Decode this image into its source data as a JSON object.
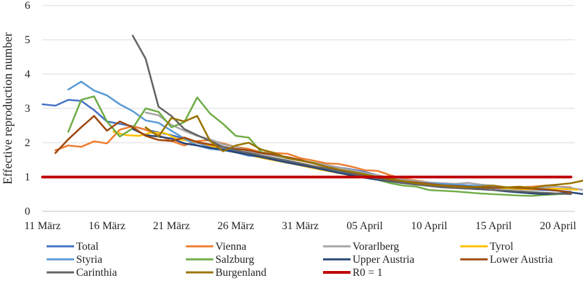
{
  "chart_data": {
    "type": "line",
    "ylabel": "Effective reproduction number",
    "xlabel": "",
    "ylim": [
      0,
      6
    ],
    "yticks": [
      0,
      1,
      2,
      3,
      4,
      5,
      6
    ],
    "x_tick_labels": [
      {
        "label": "11 März",
        "day": 0
      },
      {
        "label": "16 März",
        "day": 5
      },
      {
        "label": "21 März",
        "day": 10
      },
      {
        "label": "26 März",
        "day": 15
      },
      {
        "label": "31 März",
        "day": 20
      },
      {
        "label": "05 April",
        "day": 25
      },
      {
        "label": "10 April",
        "day": 30
      },
      {
        "label": "15 April",
        "day": 35
      },
      {
        "label": "20 April",
        "day": 40
      }
    ],
    "xlim_days": [
      0,
      41.3
    ],
    "grid": "horizontal",
    "legend_position": "bottom",
    "series": [
      {
        "name": "Total",
        "color": "#4472c4",
        "start_day": 0,
        "values": [
          3.12,
          3.08,
          3.25,
          3.22,
          2.95,
          2.62,
          2.55,
          2.48,
          2.38,
          2.3,
          2.22,
          2.12,
          2.0,
          1.9,
          1.82,
          1.75,
          1.72,
          1.68,
          1.62,
          1.55,
          1.48,
          1.4,
          1.33,
          1.28,
          1.22,
          1.15,
          1.05,
          0.97,
          0.92,
          0.88,
          0.84,
          0.8,
          0.77,
          0.74,
          0.71,
          0.68,
          0.66,
          0.64,
          0.63,
          0.62,
          0.6,
          0.57
        ]
      },
      {
        "name": "Vienna",
        "color": "#ed7d31",
        "start_day": 1,
        "values": [
          1.78,
          1.92,
          1.88,
          2.04,
          1.98,
          2.38,
          2.48,
          2.38,
          2.22,
          2.05,
          1.92,
          2.05,
          2.07,
          1.98,
          1.88,
          1.82,
          1.72,
          1.7,
          1.68,
          1.55,
          1.48,
          1.4,
          1.38,
          1.3,
          1.2,
          1.18,
          1.05,
          0.95,
          0.9,
          0.84,
          0.8,
          0.76,
          0.74,
          0.72,
          0.7,
          0.68,
          0.7,
          0.72,
          0.75,
          0.72,
          0.7
        ]
      },
      {
        "name": "Vorarlberg",
        "color": "#a5a5a5",
        "start_day": 8,
        "values": [
          2.88,
          2.8,
          2.52,
          2.35,
          2.2,
          2.1,
          1.95,
          1.88,
          1.75,
          1.68,
          1.62,
          1.55,
          1.48,
          1.42,
          1.35,
          1.28,
          1.2,
          1.12,
          1.05,
          0.98,
          0.92,
          0.88,
          0.84,
          0.82,
          0.8,
          0.83,
          0.78,
          0.75,
          0.7,
          0.68,
          0.66,
          0.7,
          0.72,
          0.68,
          0.62
        ]
      },
      {
        "name": "Tyrol",
        "color": "#ffc000",
        "start_day": 5.5,
        "values": [
          2.32,
          2.22,
          2.2,
          2.3,
          2.28,
          2.1,
          2.05,
          1.98,
          1.85,
          1.75,
          1.68,
          1.6,
          1.52,
          1.45,
          1.38,
          1.3,
          1.22,
          1.15,
          1.08,
          1.02,
          0.95,
          0.9,
          0.86,
          0.82,
          0.8,
          0.78,
          0.75,
          0.73,
          0.72,
          0.7,
          0.68,
          0.66,
          0.64,
          0.64,
          0.66,
          0.65,
          0.63
        ]
      },
      {
        "name": "Styria",
        "color": "#5b9bd5",
        "start_day": 0,
        "values": [
          null,
          null,
          3.55,
          3.78,
          3.52,
          3.38,
          3.12,
          2.92,
          2.65,
          2.58,
          2.35,
          2.12,
          1.92,
          1.82,
          1.78,
          1.72,
          1.62,
          1.6,
          1.55,
          1.45,
          1.38,
          1.3,
          1.22,
          1.15,
          1.08,
          0.98,
          0.92,
          0.88,
          0.86,
          0.84,
          0.82,
          0.8,
          0.78,
          0.76,
          0.74,
          0.72,
          0.7,
          0.68,
          0.66,
          0.64,
          0.6,
          0.55
        ]
      },
      {
        "name": "Salzburg",
        "color": "#70ad47",
        "start_day": 2,
        "values": [
          2.32,
          3.25,
          3.35,
          2.62,
          2.18,
          2.42,
          3.0,
          2.9,
          2.45,
          2.6,
          3.32,
          2.85,
          2.55,
          2.2,
          2.15,
          1.72,
          1.65,
          1.55,
          1.48,
          1.42,
          1.3,
          1.2,
          1.1,
          1.02,
          0.92,
          0.82,
          0.75,
          0.72,
          0.62,
          0.6,
          0.58,
          0.55,
          0.52,
          0.5,
          0.48,
          0.46,
          0.45,
          0.48,
          0.5,
          0.52
        ]
      },
      {
        "name": "Upper Austria",
        "color": "#264478",
        "start_day": 7,
        "values": [
          2.4,
          2.22,
          2.18,
          2.12,
          1.98,
          1.92,
          1.85,
          1.8,
          1.72,
          1.65,
          1.58,
          1.5,
          1.42,
          1.35,
          1.28,
          1.2,
          1.12,
          1.05,
          0.98,
          0.92,
          0.87,
          0.82,
          0.78,
          0.75,
          0.72,
          0.7,
          0.68,
          0.65,
          0.62,
          0.58,
          0.55,
          0.52,
          0.5,
          0.52,
          0.55,
          0.5
        ]
      },
      {
        "name": "Lower Austria",
        "color": "#9e480e",
        "start_day": 1,
        "values": [
          1.7,
          2.1,
          2.45,
          2.78,
          2.35,
          2.62,
          2.45,
          2.2,
          2.08,
          2.05,
          2.15,
          2.02,
          1.95,
          1.88,
          1.82,
          1.78,
          1.7,
          1.65,
          1.58,
          1.5,
          1.4,
          1.3,
          1.2,
          1.12,
          1.05,
          0.98,
          0.92,
          0.88,
          0.84,
          0.8,
          0.76,
          0.74,
          0.72,
          0.7,
          0.68,
          0.7,
          0.68,
          0.66,
          0.64,
          0.6,
          0.55
        ]
      },
      {
        "name": "Carinthia",
        "color": "#636363",
        "start_day": 7,
        "values": [
          5.12,
          4.45,
          3.05,
          2.78,
          2.4,
          2.22,
          2.05,
          1.88,
          1.78,
          1.7,
          1.62,
          1.55,
          1.48,
          1.4,
          1.32,
          1.25,
          1.18,
          1.1,
          1.02,
          0.95,
          0.88,
          0.82,
          0.78,
          0.74,
          0.7,
          0.68,
          0.66,
          0.64,
          0.62,
          0.6,
          0.58,
          0.56,
          0.54,
          0.52,
          0.5
        ]
      },
      {
        "name": "Burgenland",
        "color": "#997300",
        "start_day": 8,
        "values": [
          2.45,
          2.18,
          2.72,
          2.62,
          2.78,
          2.05,
          1.75,
          1.92,
          2.0,
          1.8,
          1.7,
          1.55,
          1.48,
          1.4,
          1.3,
          1.22,
          1.15,
          1.08,
          1.0,
          0.95,
          0.88,
          0.82,
          0.78,
          0.75,
          0.72,
          0.7,
          0.72,
          0.75,
          0.7,
          0.72,
          0.68,
          0.75,
          0.78,
          0.82,
          0.9,
          0.86
        ]
      },
      {
        "name": "R0 = 1",
        "legend_label": "R0 = 1",
        "color": "#c00000",
        "start_day": 0,
        "width": 4,
        "values": [
          1,
          1,
          1,
          1,
          1,
          1,
          1,
          1,
          1,
          1,
          1,
          1,
          1,
          1,
          1,
          1,
          1,
          1,
          1,
          1,
          1,
          1,
          1,
          1,
          1,
          1,
          1,
          1,
          1,
          1,
          1,
          1,
          1,
          1,
          1,
          1,
          1,
          1,
          1,
          1,
          1,
          1
        ]
      }
    ]
  }
}
